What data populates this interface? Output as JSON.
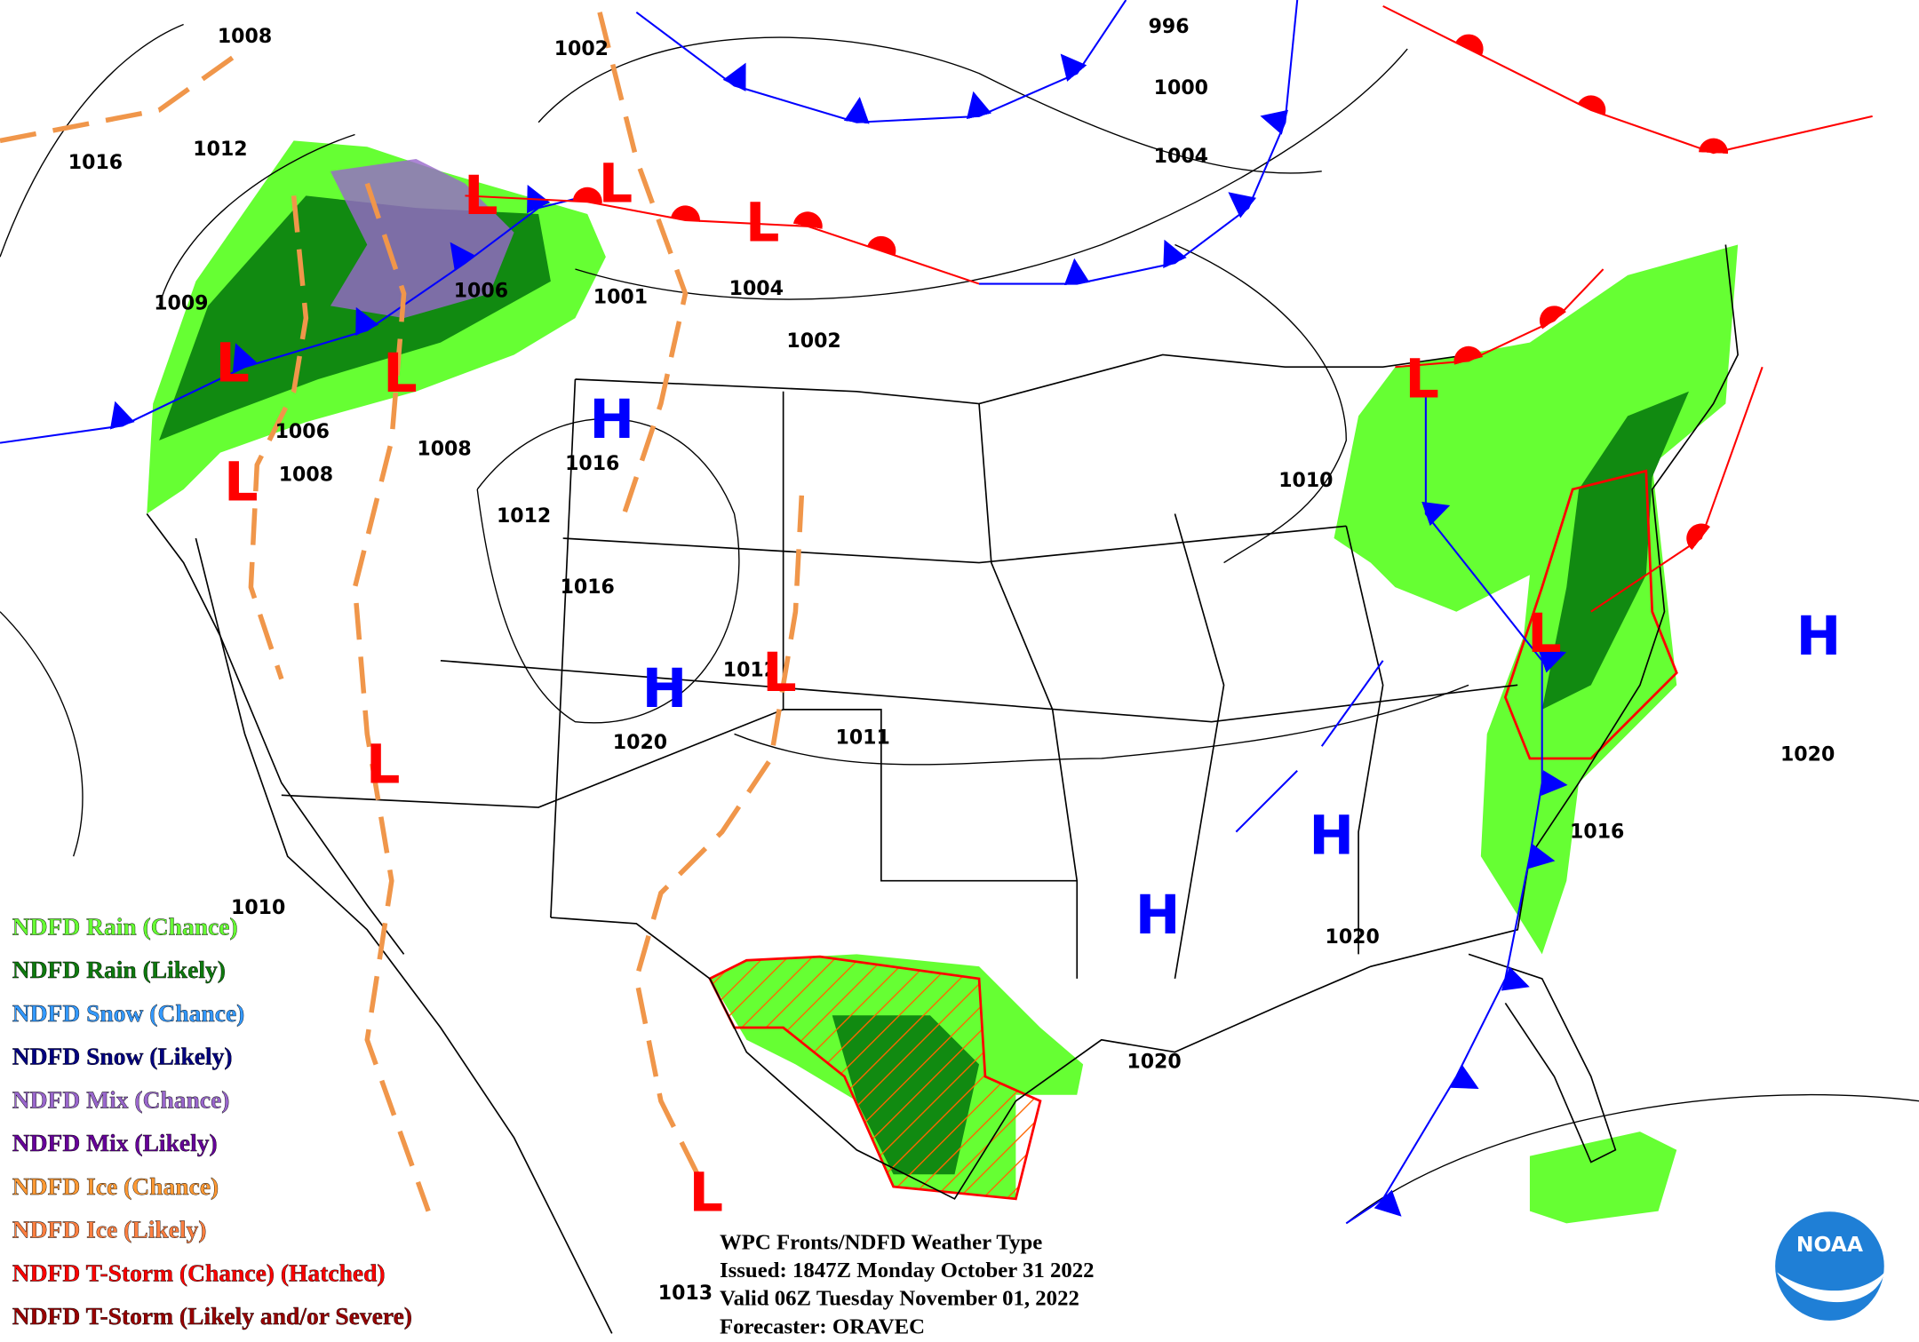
{
  "legend": [
    {
      "label": "NDFD Rain (Chance)",
      "color": "#66ff33"
    },
    {
      "label": "NDFD Rain (Likely)",
      "color": "#0e7a0e"
    },
    {
      "label": "NDFD Snow (Chance)",
      "color": "#3399ff"
    },
    {
      "label": "NDFD Snow (Likely)",
      "color": "#000080"
    },
    {
      "label": "NDFD Mix (Chance)",
      "color": "#9966cc"
    },
    {
      "label": "NDFD Mix (Likely)",
      "color": "#660099"
    },
    {
      "label": "NDFD Ice (Chance)",
      "color": "#ff9933"
    },
    {
      "label": "NDFD Ice (Likely)",
      "color": "#ff7f40"
    },
    {
      "label": "NDFD T-Storm (Chance) (Hatched)",
      "color": "#ff0000"
    },
    {
      "label": "NDFD T-Storm (Likely and/or Severe)",
      "color": "#990000"
    }
  ],
  "info": {
    "title": "WPC Fronts/NDFD Weather Type",
    "issued": "Issued: 1847Z Monday October 31 2022",
    "valid": "Valid 06Z Tuesday November 01, 2022",
    "forecaster": "Forecaster: ORAVEC"
  },
  "pressure_labels": [
    "1008",
    "1002",
    "996",
    "1000",
    "1004",
    "1016",
    "1012",
    "1009",
    "1006",
    "1001",
    "1004",
    "1002",
    "1006",
    "1008",
    "1008",
    "1016",
    "1012",
    "1010",
    "1016",
    "1012",
    "1020",
    "1011",
    "1020",
    "1016",
    "1010",
    "1020",
    "1020",
    "1013"
  ],
  "highs": [
    "H",
    "H",
    "H",
    "H",
    "H"
  ],
  "lows": [
    "L",
    "L",
    "L",
    "L",
    "L",
    "L",
    "L",
    "L",
    "L",
    "L",
    "L"
  ],
  "logo": "NOAA"
}
